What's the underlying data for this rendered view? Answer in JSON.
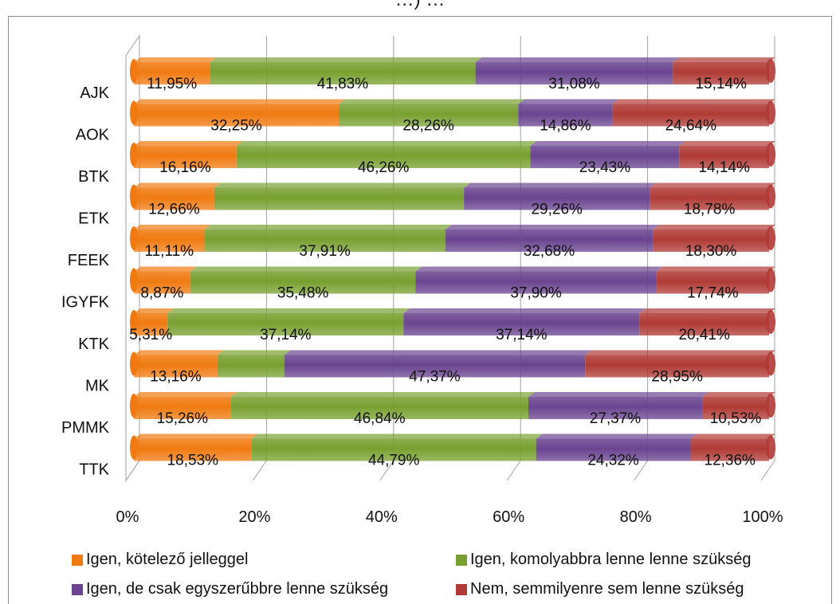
{
  "title": "…) …",
  "chart_data": {
    "type": "bar",
    "stacked": "100%",
    "orientation": "horizontal",
    "categories": [
      "AJK",
      "AOK",
      "BTK",
      "ETK",
      "FEEK",
      "IGYFK",
      "KTK",
      "MK",
      "PMMK",
      "TTK"
    ],
    "series": [
      {
        "name": "Igen, kötelező jelleggel",
        "color": "#f07a10",
        "values": [
          11.95,
          32.25,
          16.16,
          12.66,
          11.11,
          8.87,
          5.31,
          13.16,
          15.26,
          18.53
        ],
        "labels": [
          "11,95%",
          "32,25%",
          "16,16%",
          "12,66%",
          "11,11%",
          "8,87%",
          "5,31%",
          "13,16%",
          "15,26%",
          "18,53%"
        ]
      },
      {
        "name": "Igen, komolyabbra lenne lenne szükség",
        "color": "#78a030",
        "values": [
          41.83,
          28.26,
          46.26,
          39.3,
          37.91,
          35.48,
          37.14,
          10.52,
          46.84,
          44.79
        ],
        "labels": [
          "41,83%",
          "28,26%",
          "46,26%",
          "",
          "37,91%",
          "35,48%",
          "37,14%",
          "",
          "46,84%",
          "44,79%"
        ]
      },
      {
        "name": "Igen, de csak egyszerűbbre lenne szükség",
        "color": "#6a4490",
        "values": [
          31.08,
          14.86,
          23.43,
          29.26,
          32.68,
          37.9,
          37.14,
          47.37,
          27.37,
          24.32
        ],
        "labels": [
          "31,08%",
          "14,86%",
          "23,43%",
          "29,26%",
          "32,68%",
          "37,90%",
          "37,14%",
          "47,37%",
          "27,37%",
          "24,32%"
        ]
      },
      {
        "name": "Nem, semmilyenre sem lenne szükség",
        "color": "#b03a35",
        "values": [
          15.14,
          24.64,
          14.14,
          18.78,
          18.3,
          17.74,
          20.41,
          28.95,
          10.53,
          12.36
        ],
        "labels": [
          "15,14%",
          "24,64%",
          "14,14%",
          "18,78%",
          "18,30%",
          "17,74%",
          "20,41%",
          "28,95%",
          "10,53%",
          "12,36%"
        ]
      }
    ],
    "x_ticks": [
      "0%",
      "20%",
      "40%",
      "60%",
      "80%",
      "100%"
    ],
    "xlim": [
      0,
      100
    ],
    "legend_position": "bottom",
    "grid": true
  }
}
